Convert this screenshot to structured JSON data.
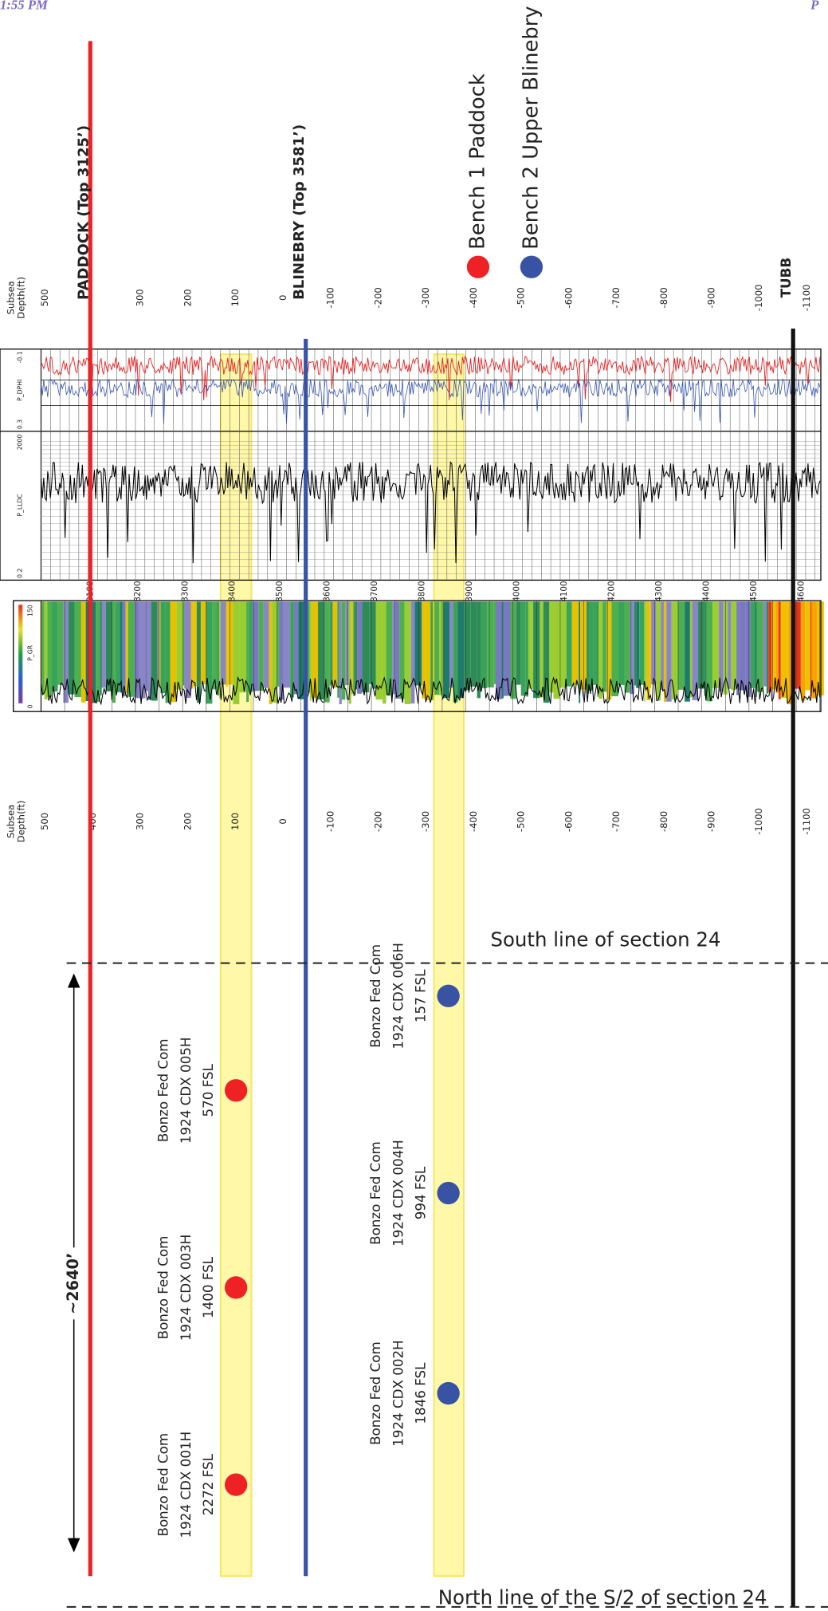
{
  "status": {
    "time": "1:55 PM",
    "right": "P"
  },
  "legend": [
    {
      "label": "Bench 1 Paddock",
      "color": "#ee2124"
    },
    {
      "label": "Bench 2 Upper Blinebry",
      "color": "#3953a4"
    }
  ],
  "markers": [
    {
      "label": "PADDOCK (Top 3125’)",
      "color": "#ee2124"
    },
    {
      "label": "BLINEBRY (Top 3581’)",
      "color": "#3953a4"
    },
    {
      "label": "TUBB",
      "color": "#111111"
    }
  ],
  "depth_header": [
    "Subsea",
    "Depth(ft)"
  ],
  "subsea_depths": [
    "500",
    "400",
    "300",
    "200",
    "100",
    "0",
    "-100",
    "-200",
    "-300",
    "-400",
    "-500",
    "-600",
    "-700",
    "-800",
    "-900",
    "-1000",
    "-1100"
  ],
  "md_depths": [
    "3100",
    "3200",
    "3300",
    "3400",
    "3500",
    "3600",
    "3700",
    "3800",
    "3900",
    "4000",
    "4100",
    "4200",
    "4300",
    "4400",
    "4500",
    "4600"
  ],
  "tracks": {
    "gr": {
      "name": "P_GR",
      "min": "0",
      "max": "150"
    },
    "lldc": {
      "name": "P_LLDC",
      "min": "0.2",
      "max": "2000"
    },
    "dphi": {
      "name": "P_DPHI",
      "min": "0.3",
      "max": "-0.1"
    }
  },
  "wells": [
    {
      "lines": [
        "Bonzo Fed Com",
        "1924 CDX 005H",
        "570 FSL"
      ],
      "bench": 0
    },
    {
      "lines": [
        "Bonzo Fed Com",
        "1924 CDX 003H",
        "1400 FSL"
      ],
      "bench": 0
    },
    {
      "lines": [
        "Bonzo Fed Com",
        "1924 CDX 001H",
        "2272 FSL"
      ],
      "bench": 0
    },
    {
      "lines": [
        "Bonzo Fed Com",
        "1924 CDX 006H",
        "157 FSL"
      ],
      "bench": 1
    },
    {
      "lines": [
        "Bonzo Fed Com",
        "1924 CDX 004H",
        "994 FSL"
      ],
      "bench": 1
    },
    {
      "lines": [
        "Bonzo Fed Com",
        "1924 CDX 002H",
        "1846 FSL"
      ],
      "bench": 1
    }
  ],
  "section_lines": {
    "south": "South line of section 24",
    "north": "North line of the S/2 of section 24"
  },
  "spacing": "~2640’"
}
